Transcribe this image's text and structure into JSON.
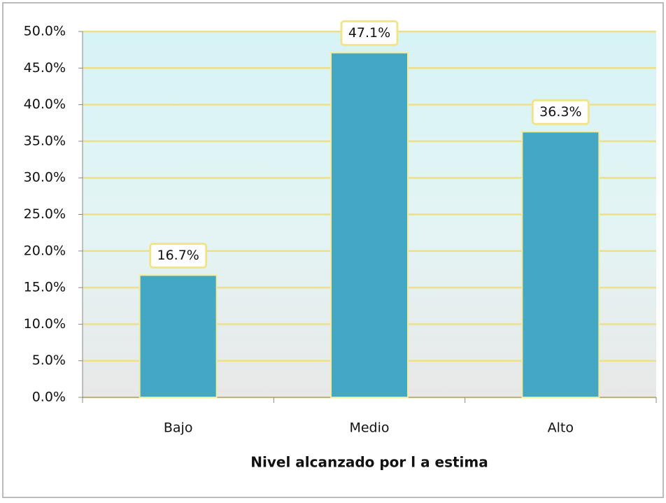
{
  "chart_data": {
    "type": "bar",
    "x_label": "Nivel alcanzado por l a estima",
    "categories": [
      "Bajo",
      "Medio",
      "Alto"
    ],
    "values": [
      16.7,
      47.1,
      36.3
    ],
    "value_labels": [
      "16.7%",
      "47.1%",
      "36.3%"
    ],
    "color": "#44a7c4",
    "ylim": [
      0,
      50
    ],
    "yticks": [
      {
        "value": 0,
        "label": "0.0%"
      },
      {
        "value": 5,
        "label": "5.0%"
      },
      {
        "value": 10,
        "label": "10.0%"
      },
      {
        "value": 15,
        "label": "15.0%"
      },
      {
        "value": 20,
        "label": "20.0%"
      },
      {
        "value": 25,
        "label": "25.0%"
      },
      {
        "value": 30,
        "label": "30.0%"
      },
      {
        "value": 35,
        "label": "35.0%"
      },
      {
        "value": 40,
        "label": "40.0%"
      },
      {
        "value": 45,
        "label": "45.0%"
      },
      {
        "value": 50,
        "label": "50.0%"
      }
    ],
    "grid": true
  }
}
